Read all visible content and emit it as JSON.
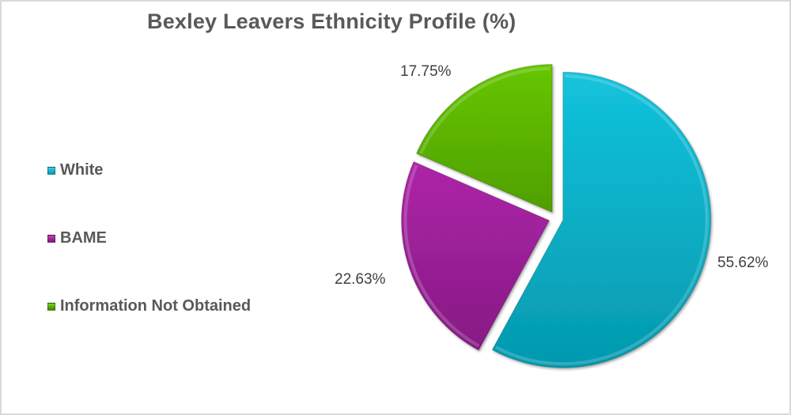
{
  "chart_data": {
    "type": "pie",
    "title": "Bexley Leavers Ethnicity Profile (%)",
    "categories": [
      "White",
      "BAME",
      "Information Not Obtained"
    ],
    "values": [
      55.62,
      22.63,
      17.75
    ],
    "labels": [
      "55.62%",
      "22.63%",
      "17.75%"
    ],
    "colors": [
      "#08B4CC",
      "#A21E9E",
      "#5AB300"
    ],
    "legend_position": "left",
    "start_angle_deg": 0,
    "direction": "clockwise",
    "exploded": true,
    "grid": false
  },
  "legend": {
    "items": [
      {
        "label": "White",
        "color": "#08B4CC"
      },
      {
        "label": "BAME",
        "color": "#A21E9E"
      },
      {
        "label": "Information Not Obtained",
        "color": "#5AB300"
      }
    ]
  }
}
